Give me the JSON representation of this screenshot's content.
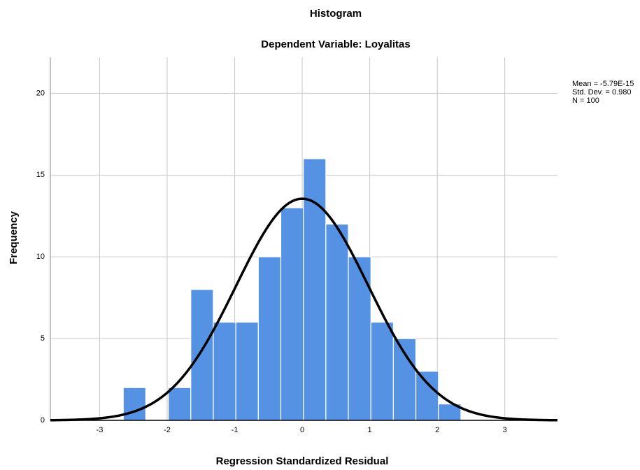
{
  "chart_data": {
    "type": "histogram",
    "title": "Histogram",
    "subtitle": "Dependent Variable: Loyalitas",
    "x_label": "Regression Standardized Residual",
    "y_label": "Frequency",
    "bins": [
      -2.65,
      -2.317,
      -1.983,
      -1.65,
      -1.317,
      -0.983,
      -0.65,
      -0.317,
      0.017,
      0.35,
      0.683,
      1.017,
      1.35,
      1.683,
      2.017,
      2.35
    ],
    "values": [
      2,
      0,
      2,
      8,
      6,
      6,
      10,
      13,
      16,
      12,
      10,
      6,
      5,
      3,
      1
    ],
    "color": "#5592e3",
    "xlim": [
      -3.73,
      3.78
    ],
    "ylim": [
      0,
      22.2
    ],
    "xticks": [
      -3,
      -2,
      -1,
      0,
      1,
      2,
      3
    ],
    "yticks": [
      0,
      5,
      10,
      15,
      20
    ],
    "grid": true,
    "normal_curve": {
      "mean": -5.79e-15,
      "sd": 0.98,
      "n": 100,
      "color": "#000000"
    },
    "stats_labels": [
      "Mean = -5.79E-15",
      "Std. Dev. = 0.980",
      "N = 100"
    ]
  }
}
